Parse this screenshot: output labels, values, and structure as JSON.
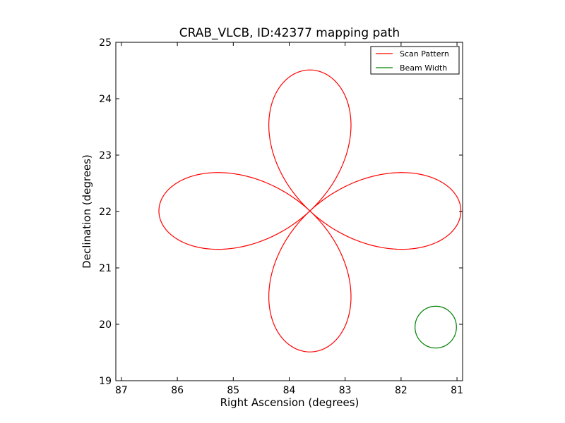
{
  "chart_data": {
    "type": "line",
    "title": "CRAB_VLCB, ID:42377 mapping path",
    "xlabel": "Right Ascension (degrees)",
    "ylabel": "Declination (degrees)",
    "xlim": [
      87.1,
      80.9
    ],
    "ylim": [
      19,
      25
    ],
    "xticks": [
      87,
      86,
      85,
      84,
      83,
      82,
      81
    ],
    "yticks": [
      19,
      20,
      21,
      22,
      23,
      24,
      25
    ],
    "grid": false,
    "legend_position": "top-right",
    "series": [
      {
        "name": "Scan Pattern",
        "color": "#ff0000",
        "shape": "four-petal rose curve",
        "center": [
          83.63,
          22.01
        ],
        "petal_length_ra": 2.7,
        "petal_length_dec": 2.5,
        "petal_width_ra": 1.5,
        "petal_width_dec": 1.4
      },
      {
        "name": "Beam Width",
        "color": "#008000",
        "shape": "circle",
        "center": [
          81.38,
          19.95
        ],
        "radius_ra": 0.37,
        "radius_dec": 0.37
      }
    ]
  }
}
